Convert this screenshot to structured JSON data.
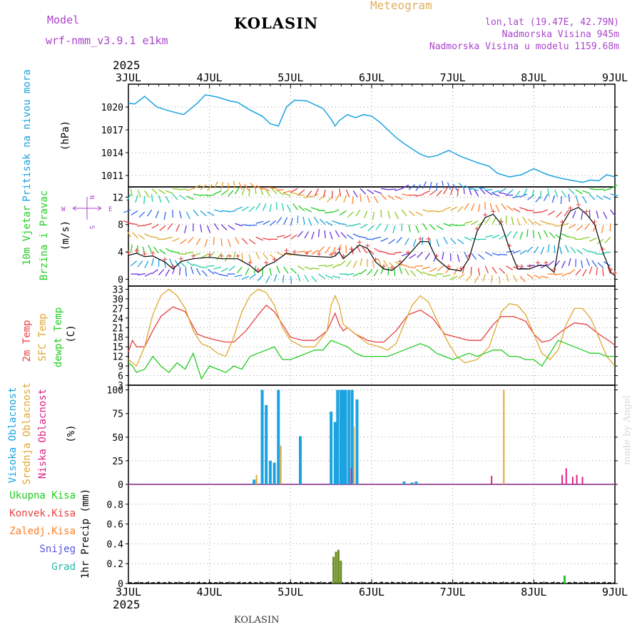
{
  "header": {
    "model_label": "Model",
    "model_name": "wrf-nmm_v3.9.1 e1km",
    "station": "KOLASIN",
    "title": "Meteogram",
    "coords": "lon,lat (19.47E, 42.79N)",
    "elevation": "Nadmorska Visina 945m",
    "model_elevation": "Nadmorska Visina u modelu 1159.68m",
    "year": "2025",
    "footer_station": "KOLASIN",
    "signature": "made by Angel"
  },
  "colors": {
    "pressure": "#1aa3e0",
    "wind_label": "#22cc22",
    "temp2m": "#e84040",
    "sfc": "#e0a830",
    "dew": "#22cc22",
    "cloud_high": "#1aa3e0",
    "cloud_mid": "#e0a830",
    "cloud_low": "#dd2288",
    "precip_total": "#22cc22",
    "precip_conv": "#e84040",
    "precip_frz": "#ff7f27",
    "snow": "#5555dd",
    "hail": "#22bbaa",
    "compass": "#aa44cc"
  },
  "chart_data": [
    {
      "type": "line",
      "name": "pressure",
      "ylabel": [
        "Pritisak na nivou mora",
        "(hPa)"
      ],
      "ylim": [
        1009.5,
        1023
      ],
      "yticks": [
        1011,
        1014,
        1017,
        1020
      ],
      "x_days": [
        3,
        4,
        5,
        6,
        7,
        8,
        9
      ],
      "x_labels": [
        "3JUL",
        "4JUL",
        "5JUL",
        "6JUL",
        "7JUL",
        "8JUL",
        "9JUL"
      ],
      "series": [
        {
          "x": [
            3.0,
            3.08,
            3.2,
            3.35,
            3.5,
            3.68,
            3.85,
            3.95,
            4.1,
            4.25,
            4.35,
            4.5,
            4.65,
            4.75,
            4.85,
            4.95,
            5.05,
            5.2,
            5.3,
            5.4,
            5.5,
            5.55,
            5.6,
            5.7,
            5.8,
            5.9,
            6.0,
            6.1,
            6.2,
            6.3,
            6.4,
            6.5,
            6.6,
            6.7,
            6.8,
            6.95,
            7.1,
            7.2,
            7.3,
            7.45,
            7.55,
            7.7,
            7.85,
            8.0,
            8.1,
            8.2,
            8.35,
            8.5,
            8.6,
            8.7,
            8.8,
            8.9,
            9.0
          ],
          "values": [
            1020.5,
            1020.4,
            1021.4,
            1020,
            1019.5,
            1019,
            1020.5,
            1021.6,
            1021.3,
            1020.8,
            1020.6,
            1019.6,
            1018.8,
            1017.8,
            1017.5,
            1020,
            1020.9,
            1020.8,
            1020.3,
            1019.8,
            1018.4,
            1017.5,
            1018.2,
            1019,
            1018.6,
            1019,
            1018.8,
            1018,
            1017,
            1016,
            1015.2,
            1014.5,
            1013.8,
            1013.4,
            1013.6,
            1014.3,
            1013.5,
            1013.1,
            1012.7,
            1012.2,
            1011.3,
            1010.8,
            1011.1,
            1011.9,
            1011.4,
            1011,
            1010.6,
            1010.3,
            1010.1,
            1010.4,
            1010.3,
            1011.1,
            1010.8
          ]
        }
      ]
    },
    {
      "type": "line",
      "name": "wind",
      "ylabel": [
        "10m Vjetar",
        "Brzina i Pravac",
        "(m/s)"
      ],
      "compass": {
        "n": "N",
        "w": "W",
        "e": "E",
        "s": "S"
      },
      "ylim": [
        -1,
        13.5
      ],
      "yticks": [
        0,
        4,
        8,
        12
      ],
      "series": [
        {
          "name": "speed",
          "x": [
            3.0,
            3.1,
            3.2,
            3.3,
            3.45,
            3.55,
            3.65,
            3.8,
            4.0,
            4.15,
            4.25,
            4.35,
            4.5,
            4.6,
            4.7,
            4.8,
            4.95,
            5.05,
            5.2,
            5.35,
            5.5,
            5.55,
            5.6,
            5.65,
            5.75,
            5.85,
            5.95,
            6.05,
            6.15,
            6.25,
            6.35,
            6.45,
            6.6,
            6.7,
            6.8,
            6.95,
            7.1,
            7.2,
            7.3,
            7.4,
            7.5,
            7.6,
            7.7,
            7.8,
            7.85,
            7.95,
            8.05,
            8.15,
            8.25,
            8.35,
            8.45,
            8.55,
            8.65,
            8.75,
            8.85,
            8.95,
            9.0
          ],
          "values": [
            3.5,
            3.8,
            3.3,
            3.4,
            2.5,
            1.5,
            2.6,
            3.0,
            3.2,
            3.0,
            3.0,
            3.0,
            2.0,
            1.0,
            2.0,
            2.5,
            3.8,
            3.6,
            3.4,
            3.3,
            3.2,
            3.4,
            4.0,
            3.0,
            4.0,
            5.0,
            4.5,
            2.5,
            1.5,
            1.3,
            2.2,
            3.5,
            5.5,
            5.5,
            3.0,
            1.5,
            1.2,
            3.0,
            7.0,
            9.0,
            9.5,
            8.0,
            4.5,
            1.5,
            1.5,
            1.5,
            2.0,
            2.0,
            1.0,
            8.0,
            10.0,
            10.5,
            9.5,
            8.0,
            4.0,
            1.0,
            0.5
          ]
        }
      ]
    },
    {
      "type": "line",
      "name": "temperature",
      "ylabel": [
        "2m Temp",
        "SFC Temp",
        "dewpt Temp",
        "(C)"
      ],
      "ylim": [
        3,
        34
      ],
      "yticks": [
        3,
        6,
        9,
        12,
        15,
        18,
        21,
        24,
        27,
        30,
        33
      ],
      "series": [
        {
          "name": "2m Temp",
          "x": [
            3.0,
            3.05,
            3.1,
            3.2,
            3.3,
            3.4,
            3.55,
            3.7,
            3.85,
            3.95,
            4.1,
            4.2,
            4.3,
            4.45,
            4.6,
            4.7,
            4.75,
            4.8,
            4.9,
            5.0,
            5.15,
            5.3,
            5.45,
            5.55,
            5.6,
            5.65,
            5.7,
            5.8,
            5.95,
            6.05,
            6.15,
            6.3,
            6.45,
            6.6,
            6.75,
            6.9,
            7.05,
            7.2,
            7.35,
            7.5,
            7.6,
            7.75,
            7.9,
            8.0,
            8.1,
            8.2,
            8.35,
            8.5,
            8.65,
            8.8,
            8.95,
            9.0
          ],
          "values": [
            13.5,
            17,
            15,
            15,
            20,
            24.5,
            27.5,
            26,
            19,
            18,
            17,
            16.5,
            16.5,
            20,
            25,
            28,
            27,
            26,
            22,
            18,
            17,
            17,
            20,
            25.5,
            22,
            20,
            21,
            19,
            17,
            16.5,
            16.5,
            20,
            25,
            26.5,
            24,
            19,
            18,
            17,
            17,
            22,
            24.5,
            24.5,
            23,
            19,
            16.5,
            17,
            20,
            22.5,
            22,
            19,
            16.5,
            15.5
          ]
        },
        {
          "name": "SFC Temp",
          "x": [
            3.0,
            3.05,
            3.1,
            3.2,
            3.3,
            3.4,
            3.5,
            3.6,
            3.7,
            3.8,
            3.9,
            4.0,
            4.1,
            4.2,
            4.3,
            4.4,
            4.5,
            4.6,
            4.7,
            4.8,
            4.9,
            5.0,
            5.15,
            5.3,
            5.45,
            5.5,
            5.55,
            5.6,
            5.65,
            5.7,
            5.8,
            5.95,
            6.1,
            6.2,
            6.3,
            6.4,
            6.5,
            6.6,
            6.7,
            6.85,
            6.95,
            7.05,
            7.15,
            7.3,
            7.45,
            7.6,
            7.7,
            7.8,
            7.9,
            8.0,
            8.1,
            8.2,
            8.3,
            8.4,
            8.5,
            8.6,
            8.7,
            8.8,
            8.9,
            9.0
          ],
          "values": [
            11,
            10,
            9,
            15,
            25,
            31,
            33,
            31,
            27,
            20,
            16,
            15,
            13,
            12,
            18,
            26,
            31,
            33,
            32,
            28,
            21,
            17,
            15,
            15,
            20,
            28,
            31,
            28,
            22,
            21,
            19,
            16,
            15,
            14,
            16,
            22,
            28,
            31,
            29,
            21,
            16,
            12,
            10,
            11,
            15,
            26,
            28.5,
            28,
            25,
            19,
            13,
            11,
            14,
            22,
            27,
            27,
            24,
            18,
            12,
            9
          ]
        },
        {
          "name": "dewpt Temp",
          "x": [
            3.0,
            3.05,
            3.1,
            3.2,
            3.3,
            3.4,
            3.5,
            3.6,
            3.7,
            3.8,
            3.9,
            4.0,
            4.1,
            4.2,
            4.3,
            4.4,
            4.5,
            4.6,
            4.7,
            4.8,
            4.9,
            5.0,
            5.1,
            5.2,
            5.3,
            5.4,
            5.5,
            5.6,
            5.7,
            5.8,
            5.9,
            6.0,
            6.1,
            6.2,
            6.3,
            6.4,
            6.5,
            6.6,
            6.7,
            6.8,
            6.9,
            7.0,
            7.1,
            7.2,
            7.3,
            7.4,
            7.5,
            7.6,
            7.7,
            7.8,
            7.9,
            8.0,
            8.1,
            8.2,
            8.3,
            8.4,
            8.5,
            8.6,
            8.7,
            8.8,
            8.9,
            9.0
          ],
          "values": [
            10,
            9,
            7,
            8,
            12,
            9,
            7,
            10,
            8,
            13,
            5,
            9,
            8,
            7,
            9,
            8,
            12,
            13,
            14,
            15,
            11,
            11,
            12,
            13,
            14,
            14,
            17,
            16,
            15,
            13,
            12,
            12,
            12,
            12,
            13,
            14,
            15,
            16,
            15,
            13,
            12,
            11,
            12,
            13,
            12,
            13,
            14,
            14,
            12,
            12,
            11,
            11,
            9,
            13,
            17,
            16,
            15,
            14,
            13,
            13,
            12,
            12
          ]
        }
      ]
    },
    {
      "type": "bar",
      "name": "clouds",
      "ylabel": [
        "Visoka Oblacnost",
        "Srednja Oblacnost",
        "Niska Oblacnost",
        "(%)"
      ],
      "ylim": [
        0,
        105
      ],
      "yticks": [
        0,
        25,
        50,
        75,
        100
      ],
      "series": [
        {
          "name": "high",
          "x": [
            4.55,
            4.65,
            4.7,
            4.75,
            4.8,
            4.85,
            5.12,
            5.5,
            5.55,
            5.58,
            5.62,
            5.65,
            5.68,
            5.72,
            5.76,
            5.82,
            6.4,
            6.5,
            6.55
          ],
          "values": [
            5,
            100,
            84,
            25,
            23,
            100,
            51,
            77,
            66,
            100,
            100,
            100,
            100,
            100,
            100,
            90,
            3,
            2,
            3
          ]
        },
        {
          "name": "mid",
          "x": [
            4.58,
            4.88,
            5.78,
            7.63
          ],
          "values": [
            10,
            41,
            61,
            100
          ]
        },
        {
          "name": "low",
          "x": [
            5.75,
            7.48,
            8.35,
            8.4,
            8.48,
            8.53,
            8.6
          ],
          "values": [
            17,
            9,
            10,
            17,
            8,
            10,
            8
          ]
        }
      ]
    },
    {
      "type": "bar",
      "name": "precipitation",
      "ylabel": [
        "1hr Precip (mm)"
      ],
      "legend": [
        "Ukupna Kisa",
        "Konvek.Kisa",
        "Zaledj.Kisa",
        "Snijeg",
        "Grad"
      ],
      "ylim": [
        0,
        1.0
      ],
      "yticks": [
        0,
        0.2,
        0.4,
        0.6,
        0.8
      ],
      "series": [
        {
          "name": "Ukupna Kisa",
          "x": [
            5.53,
            5.56,
            5.59,
            5.62,
            8.38
          ],
          "values": [
            0.27,
            0.32,
            0.34,
            0.23,
            0.08
          ]
        }
      ]
    }
  ]
}
